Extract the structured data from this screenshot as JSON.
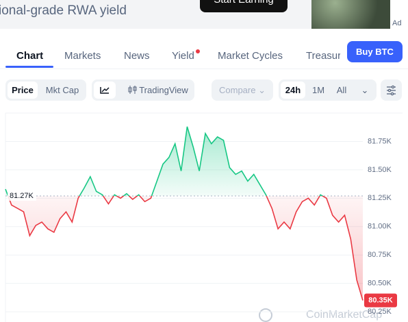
{
  "banner": {
    "text": "Institutional-grade RWA yield",
    "button": "Start Earning",
    "ad": "Ad"
  },
  "tabs": [
    "Chart",
    "Markets",
    "News",
    "Yield",
    "Market Cycles",
    "Treasuries"
  ],
  "buy_button": "Buy BTC",
  "toolbar": {
    "metric": [
      "Price",
      "Mkt Cap"
    ],
    "tradingview": "TradingView",
    "compare": "Compare",
    "ranges": [
      "24h",
      "1M",
      "All"
    ]
  },
  "chart_data": {
    "type": "line",
    "values": [
      81.33,
      81.19,
      81.16,
      81.13,
      80.92,
      81.01,
      81.04,
      80.98,
      80.95,
      81.07,
      81.13,
      81.04,
      81.25,
      81.34,
      81.44,
      81.31,
      81.28,
      81.2,
      81.28,
      81.25,
      81.29,
      81.24,
      81.28,
      81.22,
      81.25,
      81.4,
      81.55,
      81.61,
      81.73,
      81.49,
      81.88,
      81.7,
      81.49,
      81.82,
      81.73,
      81.79,
      81.76,
      81.52,
      81.46,
      81.49,
      81.4,
      81.46,
      81.37,
      81.28,
      81.16,
      80.98,
      81.04,
      80.98,
      81.13,
      81.22,
      81.25,
      81.19,
      81.28,
      81.25,
      81.1,
      81.04,
      81.1,
      80.89,
      80.53,
      80.35
    ],
    "ylim": [
      80.16,
      82.0
    ],
    "yticks": [
      {
        "value": 80.25,
        "label": "80.25K"
      },
      {
        "value": 80.5,
        "label": "80.50K"
      },
      {
        "value": 80.75,
        "label": "80.75K"
      },
      {
        "value": 81.0,
        "label": "81.00K"
      },
      {
        "value": 81.25,
        "label": "81.25K"
      },
      {
        "value": 81.5,
        "label": "81.50K"
      },
      {
        "value": 81.75,
        "label": "81.75K"
      }
    ],
    "reference": {
      "value": 81.27,
      "label": "81.27K"
    },
    "last_price": {
      "value": 80.35,
      "label": "80.35K"
    },
    "up_color": "#16c784",
    "down_color": "#ea3943",
    "grid": true,
    "watermark": "CoinMarketCap"
  }
}
